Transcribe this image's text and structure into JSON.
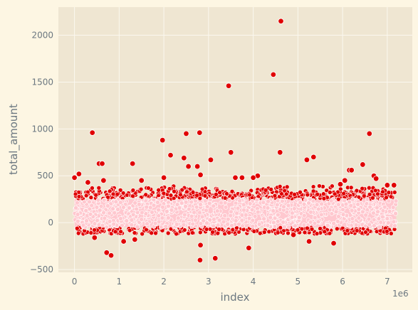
{
  "chart_data": {
    "type": "scatter",
    "title": "",
    "xlabel": "index",
    "ylabel": "total_amount",
    "x_offset_label": "1e6",
    "xlim": [
      -0.36,
      7.56
    ],
    "ylim": [
      -1000.0,
      2300
    ],
    "ylim_display": [
      -530,
      2300
    ],
    "x_ticks": [
      0,
      1,
      2,
      3,
      4,
      5,
      6,
      7
    ],
    "x_tick_labels": [
      "0",
      "1",
      "2",
      "3",
      "4",
      "5",
      "6",
      "7"
    ],
    "y_ticks": [
      -500,
      0,
      500,
      1000,
      1500,
      2000
    ],
    "y_tick_labels": [
      "−500",
      "0",
      "500",
      "1000",
      "1500",
      "2000"
    ],
    "grid": true,
    "colors": {
      "background": "#fdf6e3",
      "plot_area": "#efe6d2",
      "grid": "#fbf8ef",
      "outlier_fill": "#e00000",
      "dense_fill": "#ffc8cf",
      "marker_edge": "#ffffff"
    },
    "dense_band": {
      "x_range": [
        0,
        7.2
      ],
      "core_y_range": [
        -50,
        250
      ],
      "upper_y_range": [
        250,
        400
      ],
      "lower_y_range": [
        -120,
        -50
      ],
      "note_free": true
    },
    "outliers": [
      {
        "x": 0.0,
        "y": 480
      },
      {
        "x": 0.1,
        "y": 520
      },
      {
        "x": 0.4,
        "y": 960
      },
      {
        "x": 0.55,
        "y": 630
      },
      {
        "x": 0.62,
        "y": 630
      },
      {
        "x": 0.65,
        "y": 450
      },
      {
        "x": 0.72,
        "y": -320
      },
      {
        "x": 0.82,
        "y": -350
      },
      {
        "x": 1.3,
        "y": 630
      },
      {
        "x": 1.5,
        "y": 450
      },
      {
        "x": 1.97,
        "y": 880
      },
      {
        "x": 2.0,
        "y": 480
      },
      {
        "x": 2.15,
        "y": 720
      },
      {
        "x": 2.45,
        "y": 690
      },
      {
        "x": 2.5,
        "y": 950
      },
      {
        "x": 2.55,
        "y": 600
      },
      {
        "x": 2.75,
        "y": 600
      },
      {
        "x": 2.8,
        "y": 960
      },
      {
        "x": 2.82,
        "y": 510
      },
      {
        "x": 2.82,
        "y": -240
      },
      {
        "x": 2.81,
        "y": -400
      },
      {
        "x": 3.05,
        "y": 670
      },
      {
        "x": 3.15,
        "y": -380
      },
      {
        "x": 3.45,
        "y": 1460
      },
      {
        "x": 3.5,
        "y": 750
      },
      {
        "x": 3.9,
        "y": -270
      },
      {
        "x": 4.1,
        "y": 500
      },
      {
        "x": 4.45,
        "y": 1580
      },
      {
        "x": 4.6,
        "y": 750
      },
      {
        "x": 4.62,
        "y": 2150
      },
      {
        "x": 5.2,
        "y": 670
      },
      {
        "x": 5.35,
        "y": 700
      },
      {
        "x": 5.8,
        "y": -220
      },
      {
        "x": 6.15,
        "y": 560
      },
      {
        "x": 6.2,
        "y": 560
      },
      {
        "x": 6.45,
        "y": 620
      },
      {
        "x": 6.6,
        "y": 950
      },
      {
        "x": 6.7,
        "y": 500
      },
      {
        "x": 6.75,
        "y": 470
      },
      {
        "x": 5.25,
        "y": -200
      },
      {
        "x": 4.9,
        "y": -130
      },
      {
        "x": 3.6,
        "y": 480
      },
      {
        "x": 1.1,
        "y": -200
      },
      {
        "x": 1.35,
        "y": -180
      },
      {
        "x": 0.3,
        "y": 430
      },
      {
        "x": 0.45,
        "y": -160
      },
      {
        "x": 4.0,
        "y": 480
      },
      {
        "x": 3.75,
        "y": 480
      },
      {
        "x": 5.95,
        "y": 410
      },
      {
        "x": 6.05,
        "y": 450
      },
      {
        "x": 7.0,
        "y": 400
      },
      {
        "x": 7.15,
        "y": 400
      }
    ]
  }
}
